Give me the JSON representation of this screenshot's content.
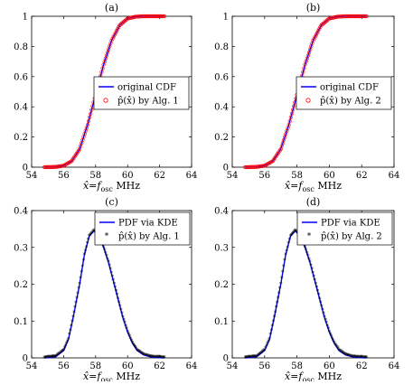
{
  "figure": {
    "panels": [
      {
        "id": "a",
        "label": "(a)",
        "legend": [
          "original CDF",
          "p̂(x̂) by Alg. 1"
        ]
      },
      {
        "id": "b",
        "label": "(b)",
        "legend": [
          "original CDF",
          "p̂(x̂) by Alg. 2"
        ]
      },
      {
        "id": "c",
        "label": "(c)",
        "legend": [
          "PDF via KDE",
          "p̂(x̂) by Alg. 1"
        ]
      },
      {
        "id": "d",
        "label": "(d)",
        "legend": [
          "PDF via KDE",
          "p̂(x̂) by Alg. 2"
        ]
      }
    ],
    "colors": {
      "line": "#0000ff",
      "markers": "#ff0000",
      "axes": "#000000"
    },
    "xlabel": "x̂ = f_osc MHz"
  },
  "chart_data": [
    {
      "type": "line",
      "title": "(a)",
      "xlabel": "x̂=f_osc MHz",
      "ylabel": "",
      "xlim": [
        54,
        64
      ],
      "ylim": [
        0,
        1
      ],
      "xticks": [
        54,
        56,
        58,
        60,
        62,
        64
      ],
      "yticks": [
        0,
        0.2,
        0.4,
        0.6,
        0.8,
        1
      ],
      "legend_position": "lower-right",
      "series": [
        {
          "name": "original CDF",
          "style": "line",
          "color": "#0000ff",
          "x": [
            54.8,
            55.5,
            56.0,
            56.5,
            57.0,
            57.5,
            58.0,
            58.5,
            59.0,
            59.5,
            60.0,
            60.5,
            61.0,
            62.3
          ],
          "y": [
            0.0,
            0.002,
            0.01,
            0.04,
            0.12,
            0.28,
            0.48,
            0.68,
            0.84,
            0.94,
            0.985,
            0.997,
            1.0,
            1.0
          ]
        },
        {
          "name": "p̂(x̂) by Alg. 1",
          "style": "circle-markers",
          "color": "#ff0000",
          "x": [
            54.8,
            55.5,
            56.0,
            56.5,
            57.0,
            57.5,
            58.0,
            58.5,
            59.0,
            59.5,
            60.0,
            60.5,
            61.0,
            62.3
          ],
          "y": [
            0.0,
            0.002,
            0.01,
            0.04,
            0.12,
            0.28,
            0.48,
            0.68,
            0.84,
            0.94,
            0.985,
            0.997,
            1.0,
            1.0
          ]
        }
      ]
    },
    {
      "type": "line",
      "title": "(b)",
      "xlabel": "x̂=f_osc MHz",
      "ylabel": "",
      "xlim": [
        54,
        64
      ],
      "ylim": [
        0,
        1
      ],
      "xticks": [
        54,
        56,
        58,
        60,
        62,
        64
      ],
      "yticks": [
        0,
        0.2,
        0.4,
        0.6,
        0.8,
        1
      ],
      "legend_position": "lower-right",
      "series": [
        {
          "name": "original CDF",
          "style": "line",
          "color": "#0000ff",
          "x": [
            54.8,
            55.5,
            56.0,
            56.5,
            57.0,
            57.5,
            58.0,
            58.5,
            59.0,
            59.5,
            60.0,
            60.5,
            61.0,
            62.3
          ],
          "y": [
            0.0,
            0.002,
            0.01,
            0.04,
            0.12,
            0.28,
            0.48,
            0.68,
            0.84,
            0.94,
            0.985,
            0.997,
            1.0,
            1.0
          ]
        },
        {
          "name": "p̂(x̂) by Alg. 2",
          "style": "circle-markers",
          "color": "#ff0000",
          "x": [
            54.8,
            55.5,
            56.0,
            56.5,
            57.0,
            57.5,
            58.0,
            58.5,
            59.0,
            59.5,
            60.0,
            60.5,
            61.0,
            62.3
          ],
          "y": [
            0.0,
            0.002,
            0.01,
            0.04,
            0.12,
            0.28,
            0.48,
            0.68,
            0.84,
            0.94,
            0.985,
            0.997,
            1.0,
            1.0
          ]
        }
      ]
    },
    {
      "type": "line",
      "title": "(c)",
      "xlabel": "x̂=f_osc MHz",
      "ylabel": "",
      "xlim": [
        54,
        64
      ],
      "ylim": [
        0,
        0.4
      ],
      "xticks": [
        54,
        56,
        58,
        60,
        62,
        64
      ],
      "yticks": [
        0,
        0.1,
        0.2,
        0.3,
        0.4
      ],
      "legend_position": "top-right",
      "series": [
        {
          "name": "PDF via KDE",
          "style": "line",
          "color": "#0000ff",
          "x": [
            54.8,
            55.5,
            56.0,
            56.3,
            56.6,
            57.0,
            57.3,
            57.6,
            57.9,
            58.2,
            58.5,
            58.8,
            59.1,
            59.4,
            59.7,
            60.0,
            60.3,
            60.6,
            61.0,
            61.5,
            62.3
          ],
          "y": [
            0.0,
            0.003,
            0.02,
            0.05,
            0.11,
            0.2,
            0.28,
            0.33,
            0.345,
            0.33,
            0.3,
            0.26,
            0.21,
            0.16,
            0.11,
            0.07,
            0.04,
            0.02,
            0.008,
            0.002,
            0.0
          ]
        },
        {
          "name": "p̂(x̂) by Alg. 1",
          "style": "star-markers",
          "color": "#ff0000",
          "x": [
            54.8,
            55.5,
            56.0,
            56.3,
            56.6,
            57.0,
            57.3,
            57.6,
            57.9,
            58.2,
            58.5,
            58.8,
            59.1,
            59.4,
            59.7,
            60.0,
            60.3,
            60.6,
            61.0,
            61.5,
            62.3
          ],
          "y": [
            0.0,
            0.003,
            0.02,
            0.05,
            0.11,
            0.2,
            0.28,
            0.33,
            0.345,
            0.33,
            0.3,
            0.26,
            0.21,
            0.16,
            0.11,
            0.07,
            0.04,
            0.02,
            0.008,
            0.002,
            0.0
          ]
        }
      ]
    },
    {
      "type": "line",
      "title": "(d)",
      "xlabel": "x̂=f_osc MHz",
      "ylabel": "",
      "xlim": [
        54,
        64
      ],
      "ylim": [
        0,
        0.4
      ],
      "xticks": [
        54,
        56,
        58,
        60,
        62,
        64
      ],
      "yticks": [
        0,
        0.1,
        0.2,
        0.3,
        0.4
      ],
      "legend_position": "top-right",
      "series": [
        {
          "name": "PDF via KDE",
          "style": "line",
          "color": "#0000ff",
          "x": [
            54.8,
            55.5,
            56.0,
            56.3,
            56.6,
            57.0,
            57.3,
            57.6,
            57.9,
            58.2,
            58.5,
            58.8,
            59.1,
            59.4,
            59.7,
            60.0,
            60.3,
            60.6,
            61.0,
            61.5,
            62.3
          ],
          "y": [
            0.0,
            0.003,
            0.02,
            0.05,
            0.11,
            0.2,
            0.28,
            0.33,
            0.345,
            0.33,
            0.3,
            0.26,
            0.21,
            0.16,
            0.11,
            0.07,
            0.04,
            0.02,
            0.008,
            0.002,
            0.0
          ]
        },
        {
          "name": "p̂(x̂) by Alg. 2",
          "style": "star-markers",
          "color": "#ff0000",
          "x": [
            54.8,
            55.5,
            56.0,
            56.3,
            56.6,
            57.0,
            57.3,
            57.6,
            57.9,
            58.2,
            58.5,
            58.8,
            59.1,
            59.4,
            59.7,
            60.0,
            60.3,
            60.6,
            61.0,
            61.5,
            62.3
          ],
          "y": [
            0.0,
            0.003,
            0.02,
            0.05,
            0.11,
            0.2,
            0.28,
            0.33,
            0.345,
            0.33,
            0.3,
            0.26,
            0.21,
            0.16,
            0.11,
            0.07,
            0.04,
            0.02,
            0.008,
            0.002,
            0.0
          ]
        }
      ]
    }
  ]
}
